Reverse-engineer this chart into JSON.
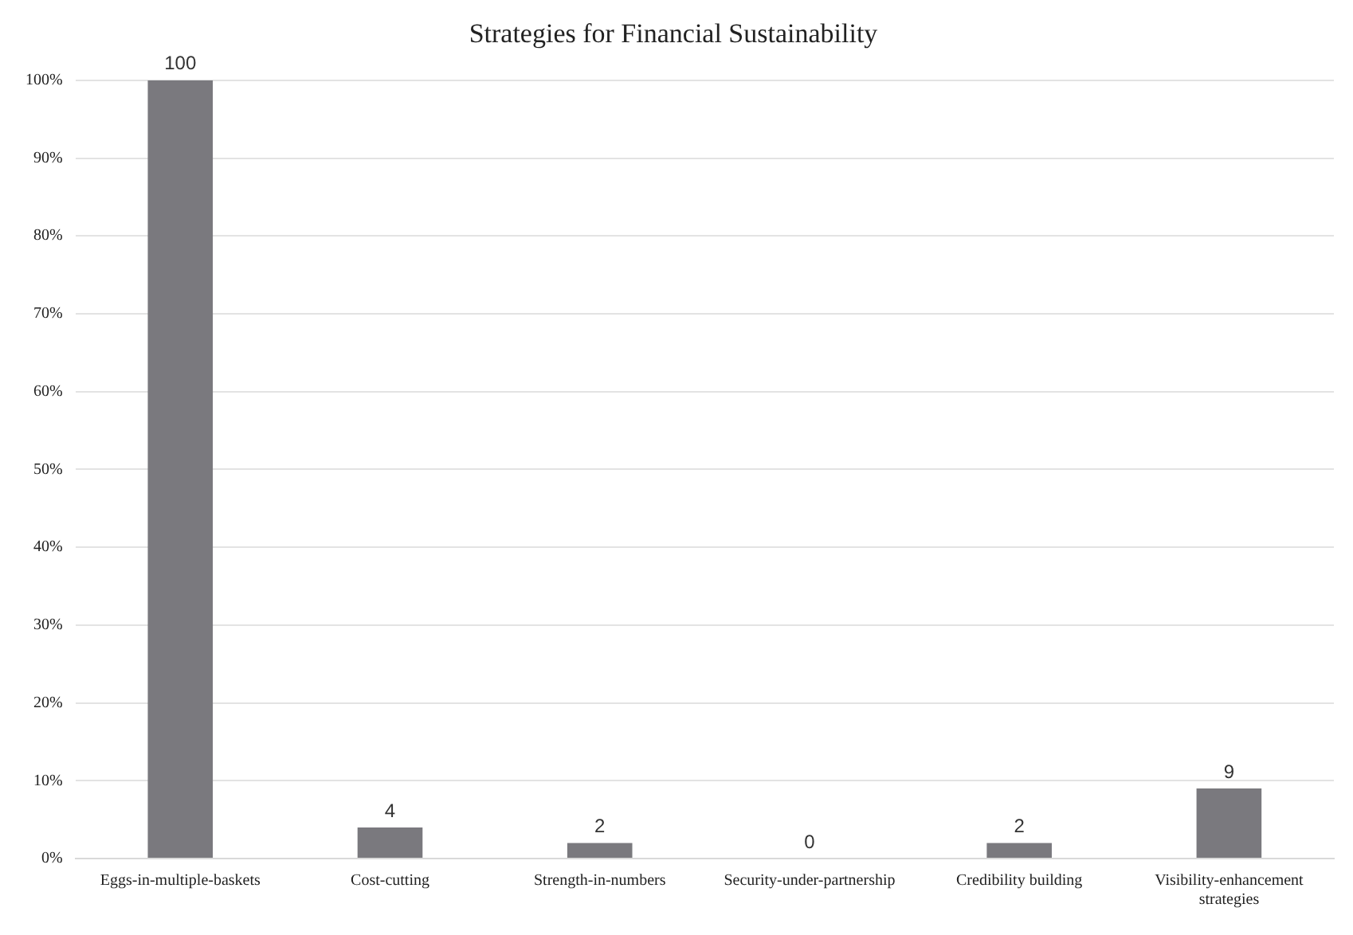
{
  "chart_data": {
    "type": "bar",
    "title": "Strategies for Financial Sustainability",
    "categories": [
      "Eggs-in-multiple-baskets",
      "Cost-cutting",
      "Strength-in-numbers",
      "Security-under-partnership",
      "Credibility building",
      "Visibility-enhancement strategies"
    ],
    "values": [
      100,
      4,
      2,
      0,
      2,
      9
    ],
    "color": "#7a797e",
    "ylim": [
      0,
      100
    ],
    "yticks": [
      {
        "value": 0,
        "label": "0%"
      },
      {
        "value": 10,
        "label": "10%"
      },
      {
        "value": 20,
        "label": "20%"
      },
      {
        "value": 30,
        "label": "30%"
      },
      {
        "value": 40,
        "label": "40%"
      },
      {
        "value": 50,
        "label": "50%"
      },
      {
        "value": 60,
        "label": "60%"
      },
      {
        "value": 70,
        "label": "70%"
      },
      {
        "value": 80,
        "label": "80%"
      },
      {
        "value": 90,
        "label": "90%"
      },
      {
        "value": 100,
        "label": "100%"
      }
    ],
    "grid": "y",
    "data_labels": true
  }
}
